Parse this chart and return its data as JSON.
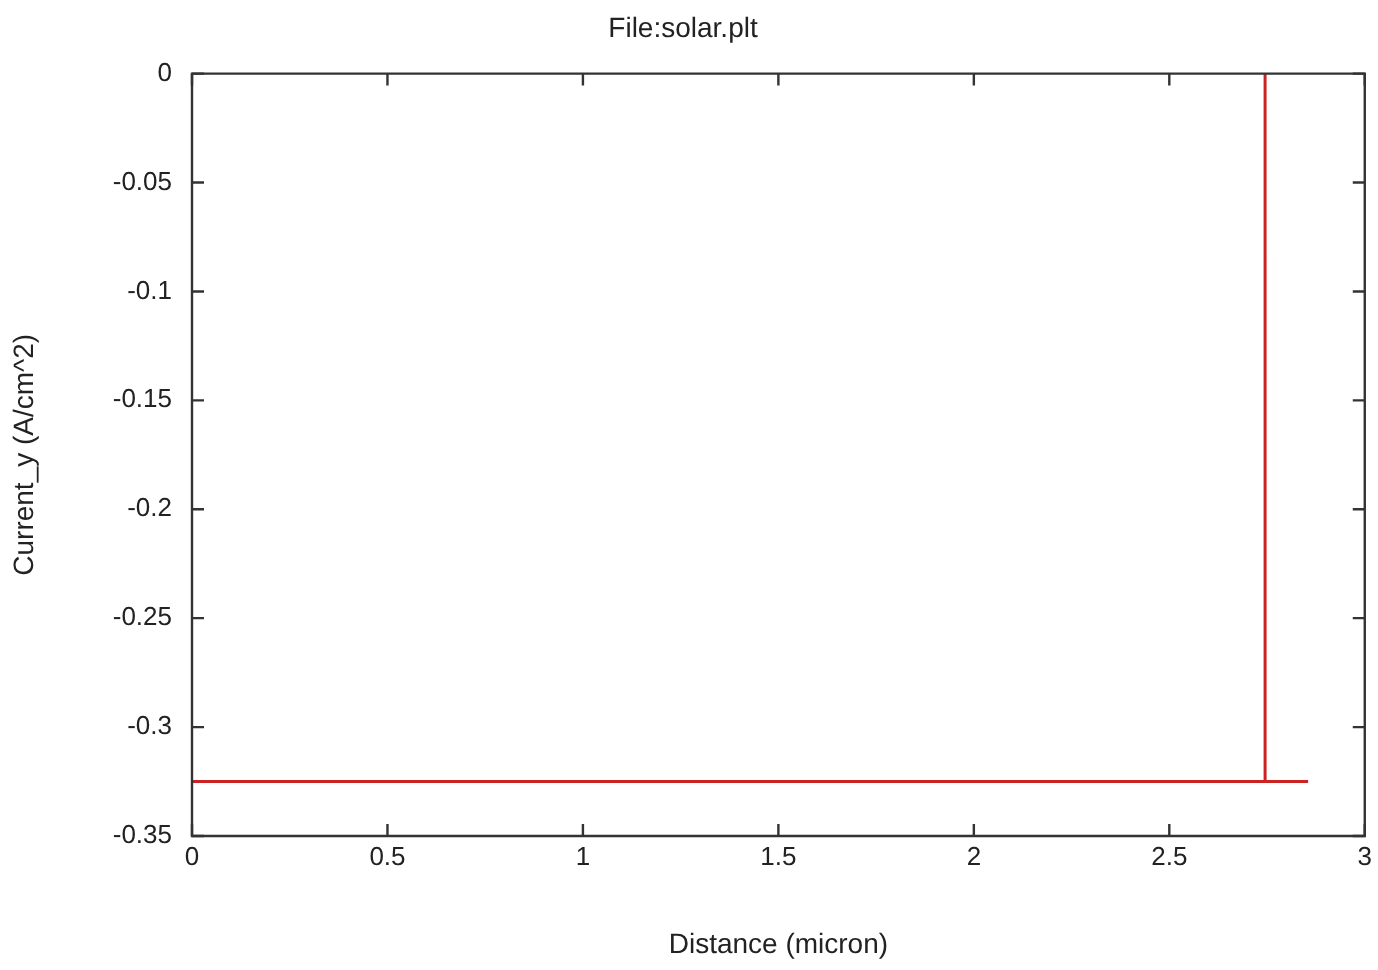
{
  "chart_data": {
    "type": "line",
    "title": "File:solar.plt",
    "xlabel": "Distance (micron)",
    "ylabel": "Current_y (A/cm^2)",
    "x": [
      0,
      2.745,
      2.745,
      2.745,
      2.855
    ],
    "series": [
      {
        "color": "#cc2222",
        "values": [
          -0.325,
          -0.325,
          0,
          -0.325,
          -0.325
        ]
      }
    ],
    "xlim": [
      0,
      3
    ],
    "xticks": [
      0,
      0.5,
      1,
      1.5,
      2,
      2.5,
      3
    ],
    "ylim": [
      -0.35,
      0
    ],
    "yticks": [
      0,
      -0.05,
      -0.1,
      -0.15,
      -0.2,
      -0.25,
      -0.3,
      -0.35
    ],
    "grid": false,
    "legend": false,
    "marker": "none",
    "line_style": "solid"
  }
}
